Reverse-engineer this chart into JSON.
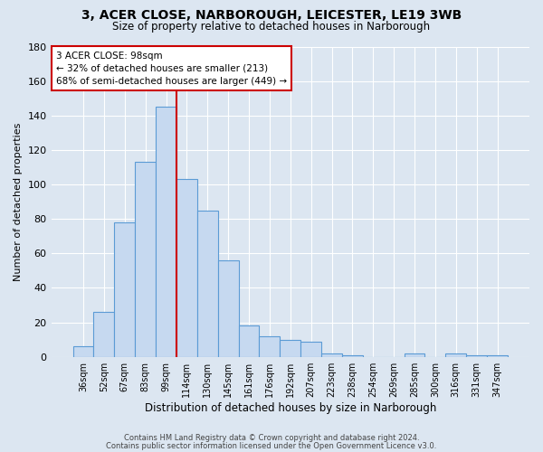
{
  "title": "3, ACER CLOSE, NARBOROUGH, LEICESTER, LE19 3WB",
  "subtitle": "Size of property relative to detached houses in Narborough",
  "xlabel": "Distribution of detached houses by size in Narborough",
  "ylabel": "Number of detached properties",
  "bar_labels": [
    "36sqm",
    "52sqm",
    "67sqm",
    "83sqm",
    "99sqm",
    "114sqm",
    "130sqm",
    "145sqm",
    "161sqm",
    "176sqm",
    "192sqm",
    "207sqm",
    "223sqm",
    "238sqm",
    "254sqm",
    "269sqm",
    "285sqm",
    "300sqm",
    "316sqm",
    "331sqm",
    "347sqm"
  ],
  "bar_values": [
    6,
    26,
    78,
    113,
    145,
    103,
    85,
    56,
    18,
    12,
    10,
    9,
    2,
    1,
    0,
    0,
    2,
    0,
    2,
    1,
    1
  ],
  "bar_color": "#c6d9f0",
  "bar_edge_color": "#5b9bd5",
  "vline_x_index": 4,
  "vline_color": "#cc0000",
  "ylim": [
    0,
    180
  ],
  "yticks": [
    0,
    20,
    40,
    60,
    80,
    100,
    120,
    140,
    160,
    180
  ],
  "annotation_title": "3 ACER CLOSE: 98sqm",
  "annotation_line1": "← 32% of detached houses are smaller (213)",
  "annotation_line2": "68% of semi-detached houses are larger (449) →",
  "annotation_box_color": "#ffffff",
  "annotation_box_edge": "#cc0000",
  "footer1": "Contains HM Land Registry data © Crown copyright and database right 2024.",
  "footer2": "Contains public sector information licensed under the Open Government Licence v3.0.",
  "background_color": "#dce6f1",
  "plot_bg_color": "#dce6f1",
  "figsize": [
    6.0,
    5.0
  ],
  "dpi": 100
}
